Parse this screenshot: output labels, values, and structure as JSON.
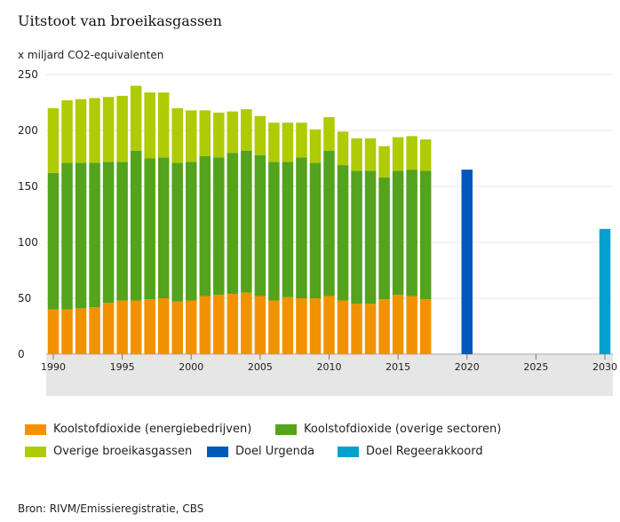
{
  "title": "Uitstoot van broeikasgassen",
  "unit_label": "x miljard CO2-equivalenten",
  "source": "Bron: RIVM/Emissieregistratie, CBS",
  "colors": {
    "energie": "#f39200",
    "overige_sectoren": "#53a31d",
    "overige_gassen": "#afcb05",
    "urgenda": "#0058b8",
    "regeerakkoord": "#00a1cd",
    "axis_band": "#e6e6e6",
    "grid": "#e4e4e4"
  },
  "legend": [
    {
      "key": "energie",
      "label": "Koolstofdioxide (energiebedrijven)"
    },
    {
      "key": "overige_sectoren",
      "label": "Koolstofdioxide (overige sectoren)"
    },
    {
      "key": "overige_gassen",
      "label": "Overige broeikasgassen"
    },
    {
      "key": "urgenda",
      "label": "Doel Urgenda"
    },
    {
      "key": "regeerakkoord",
      "label": "Doel Regeerakkoord"
    }
  ],
  "chart_data": {
    "type": "bar",
    "stacked": true,
    "title": "Uitstoot van broeikasgassen",
    "ylabel": "x miljard CO2-equivalenten",
    "xlabel": "",
    "ylim": [
      0,
      250
    ],
    "yticks": [
      0,
      50,
      100,
      150,
      200,
      250
    ],
    "xlim": [
      1990,
      2030
    ],
    "xticks": [
      1990,
      1995,
      2000,
      2005,
      2010,
      2015,
      2020,
      2025,
      2030
    ],
    "categories": [
      1990,
      1991,
      1992,
      1993,
      1994,
      1995,
      1996,
      1997,
      1998,
      1999,
      2000,
      2001,
      2002,
      2003,
      2004,
      2005,
      2006,
      2007,
      2008,
      2009,
      2010,
      2011,
      2012,
      2013,
      2014,
      2015,
      2016,
      2017
    ],
    "series": [
      {
        "name": "Koolstofdioxide (energiebedrijven)",
        "key": "energie",
        "values": [
          40,
          40,
          41,
          42,
          46,
          48,
          48,
          49,
          50,
          47,
          48,
          52,
          53,
          54,
          55,
          52,
          48,
          51,
          50,
          50,
          52,
          48,
          45,
          45,
          49,
          53,
          52,
          49
        ]
      },
      {
        "name": "Koolstofdioxide (overige sectoren)",
        "key": "overige_sectoren",
        "values": [
          122,
          131,
          130,
          129,
          126,
          124,
          134,
          126,
          126,
          124,
          124,
          125,
          123,
          126,
          127,
          126,
          124,
          121,
          126,
          121,
          130,
          121,
          119,
          119,
          109,
          111,
          113,
          115
        ]
      },
      {
        "name": "Overige broeikasgassen",
        "key": "overige_gassen",
        "values": [
          58,
          56,
          57,
          58,
          58,
          59,
          58,
          59,
          58,
          49,
          46,
          41,
          40,
          37,
          37,
          35,
          35,
          35,
          31,
          30,
          30,
          30,
          29,
          29,
          28,
          30,
          30,
          28
        ]
      }
    ],
    "targets": [
      {
        "name": "Doel Urgenda",
        "key": "urgenda",
        "year": 2020,
        "value": 165
      },
      {
        "name": "Doel Regeerakkoord",
        "key": "regeerakkoord",
        "year": 2030,
        "value": 112
      }
    ]
  }
}
